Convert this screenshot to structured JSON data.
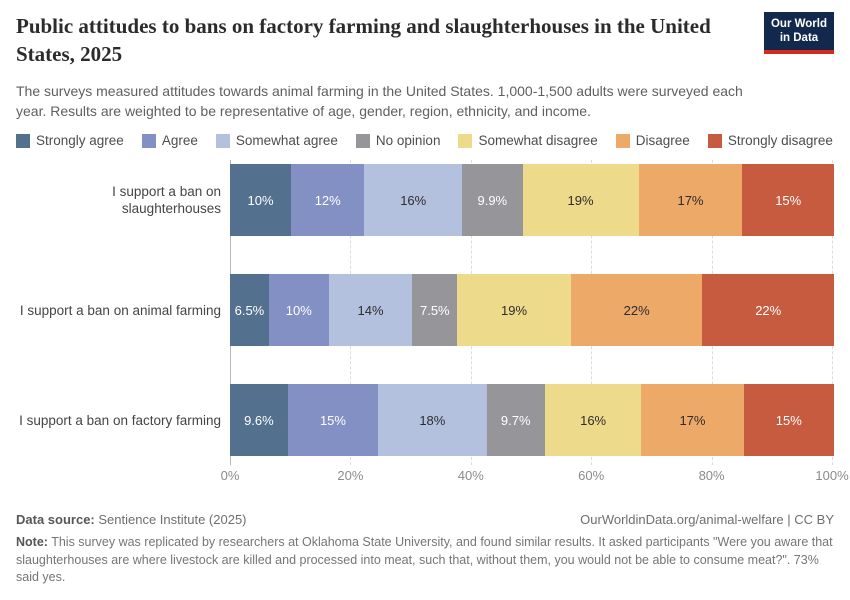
{
  "header": {
    "title": "Public attitudes to bans on factory farming and slaughterhouses in the United States, 2025",
    "subtitle": "The surveys measured attitudes towards animal farming in the United States. 1,000-1,500 adults were surveyed each year. Results are weighted to be representative of age, gender, region, ethnicity, and income.",
    "logo": {
      "line1": "Our World",
      "line2": "in Data",
      "bg_color": "#12294d",
      "accent_color": "#d42b21"
    }
  },
  "chart_data": {
    "type": "bar",
    "orientation": "horizontal",
    "stacked": true,
    "legend_position": "top",
    "categories": [
      "I support a ban on slaughterhouses",
      "I support a ban on animal farming",
      "I support a ban on factory farming"
    ],
    "series": [
      {
        "name": "Strongly agree",
        "color": "#54708f",
        "label_color": "#ffffff",
        "values": [
          10,
          6.5,
          9.6
        ],
        "labels": [
          "10%",
          "6.5%",
          "9.6%"
        ]
      },
      {
        "name": "Agree",
        "color": "#8290c4",
        "label_color": "#ffffff",
        "values": [
          12,
          10,
          15
        ],
        "labels": [
          "12%",
          "10%",
          "15%"
        ]
      },
      {
        "name": "Somewhat agree",
        "color": "#b3c1de",
        "label_color": "#2d2d2d",
        "values": [
          16,
          14,
          18
        ],
        "labels": [
          "16%",
          "14%",
          "18%"
        ]
      },
      {
        "name": "No opinion",
        "color": "#969599",
        "label_color": "#ffffff",
        "values": [
          9.9,
          7.5,
          9.7
        ],
        "labels": [
          "9.9%",
          "7.5%",
          "9.7%"
        ]
      },
      {
        "name": "Somewhat disagree",
        "color": "#eeda8b",
        "label_color": "#2d2d2d",
        "values": [
          19,
          19,
          16
        ],
        "labels": [
          "19%",
          "19%",
          "16%"
        ]
      },
      {
        "name": "Disagree",
        "color": "#eda967",
        "label_color": "#2d2d2d",
        "values": [
          17,
          22,
          17
        ],
        "labels": [
          "17%",
          "22%",
          "17%"
        ]
      },
      {
        "name": "Strongly disagree",
        "color": "#c65b40",
        "label_color": "#ffffff",
        "values": [
          15,
          22,
          15
        ],
        "labels": [
          "15%",
          "22%",
          "15%"
        ]
      }
    ],
    "x_axis": {
      "min": 0,
      "max": 100,
      "ticks": [
        "0%",
        "20%",
        "40%",
        "60%",
        "80%",
        "100%"
      ],
      "grid": "dashed"
    }
  },
  "footer": {
    "datasource_label": "Data source:",
    "datasource_value": " Sentience Institute (2025)",
    "attribution": "OurWorldinData.org/animal-welfare | CC BY",
    "note_label": "Note:",
    "note_value": " This survey was replicated by researchers at Oklahoma State University, and found similar results. It asked participants \"Were you aware that slaughterhouses are where livestock are killed and processed into meat, such that, without them, you would not be able to consume meat?\". 73% said yes."
  }
}
